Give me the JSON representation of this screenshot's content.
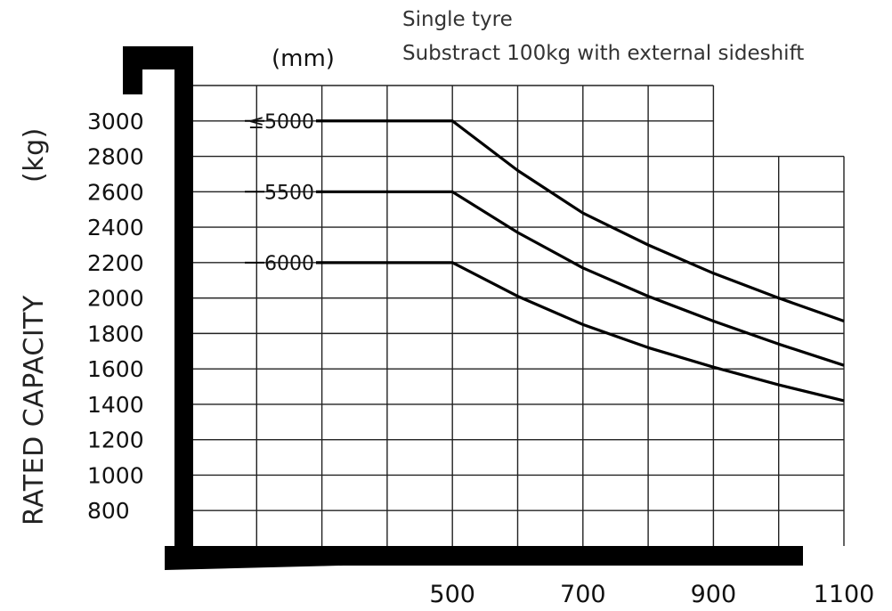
{
  "chart_data": {
    "type": "line",
    "notes": [
      "Single tyre",
      "Substract 100kg with external sideshift"
    ],
    "x_unit": "(mm)",
    "ylabel": "RATED CAPACITY",
    "y_unit": "(kg)",
    "x_ticks": [
      "500",
      "700",
      "900",
      "1100"
    ],
    "y_ticks": [
      "3000",
      "2800",
      "2600",
      "2400",
      "2200",
      "2000",
      "1800",
      "1600",
      "1400",
      "1200",
      "1000",
      "800"
    ],
    "xlim": [
      100,
      1100
    ],
    "ylim": [
      600,
      3200
    ],
    "series": [
      {
        "name": "≤5000",
        "x": [
          500,
          600,
          700,
          800,
          900,
          1000,
          1100
        ],
        "y": [
          3000,
          2720,
          2480,
          2300,
          2140,
          2000,
          1870
        ]
      },
      {
        "name": "5500",
        "x": [
          500,
          600,
          700,
          800,
          900,
          1000,
          1100
        ],
        "y": [
          2600,
          2370,
          2170,
          2010,
          1870,
          1740,
          1620
        ]
      },
      {
        "name": "6000",
        "x": [
          500,
          600,
          700,
          800,
          900,
          1000,
          1100
        ],
        "y": [
          2200,
          2010,
          1850,
          1720,
          1610,
          1510,
          1420
        ]
      }
    ]
  }
}
